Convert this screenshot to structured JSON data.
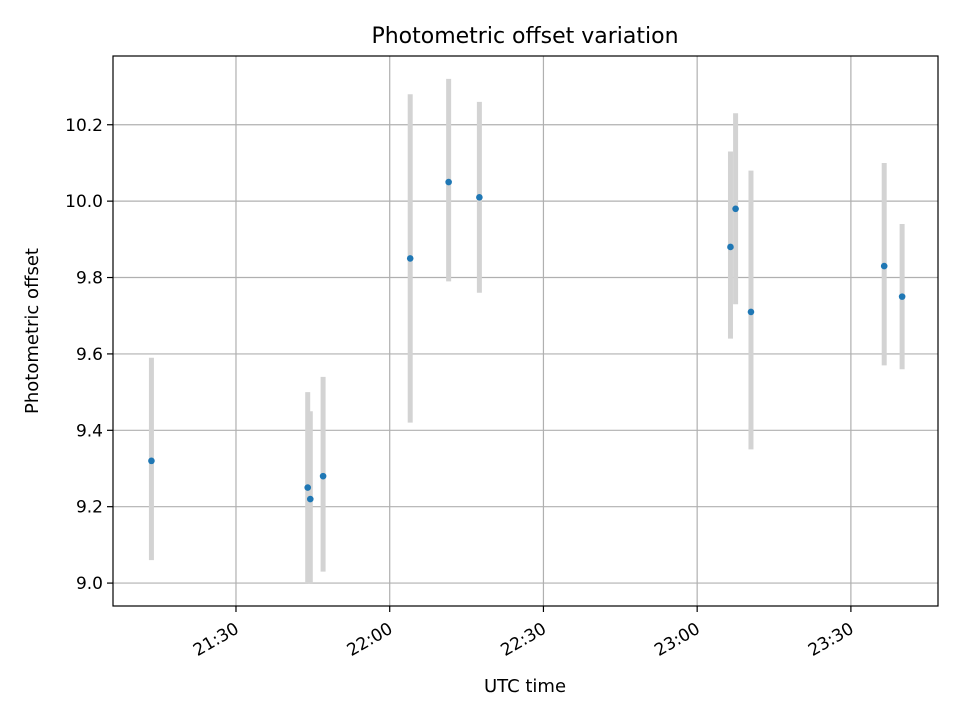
{
  "chart_data": {
    "type": "scatter",
    "title": "Photometric offset variation",
    "xlabel": "UTC time",
    "ylabel": "Photometric offset",
    "x_ticks": [
      "21:30",
      "22:00",
      "22:30",
      "23:00",
      "23:30"
    ],
    "y_ticks": [
      "9.0",
      "9.2",
      "9.4",
      "9.6",
      "9.8",
      "10.0",
      "10.2"
    ],
    "xlim": [
      "21:06",
      "23:47"
    ],
    "ylim": [
      8.94,
      10.38
    ],
    "grid": true,
    "point_color": "#1f77b4",
    "errorbar_color": "#d3d3d3",
    "points": [
      {
        "x": "21:13:30",
        "y": 9.32,
        "err_low": 9.06,
        "err_high": 9.59
      },
      {
        "x": "21:44:00",
        "y": 9.25,
        "err_low": 9.0,
        "err_high": 9.5
      },
      {
        "x": "21:44:30",
        "y": 9.22,
        "err_low": 9.0,
        "err_high": 9.45
      },
      {
        "x": "21:47:00",
        "y": 9.28,
        "err_low": 9.03,
        "err_high": 9.54
      },
      {
        "x": "22:04:00",
        "y": 9.85,
        "err_low": 9.42,
        "err_high": 10.28
      },
      {
        "x": "22:11:30",
        "y": 10.05,
        "err_low": 9.79,
        "err_high": 10.32
      },
      {
        "x": "22:17:30",
        "y": 10.01,
        "err_low": 9.76,
        "err_high": 10.26
      },
      {
        "x": "23:06:30",
        "y": 9.88,
        "err_low": 9.64,
        "err_high": 10.13
      },
      {
        "x": "23:07:30",
        "y": 9.98,
        "err_low": 9.73,
        "err_high": 10.23
      },
      {
        "x": "23:10:30",
        "y": 9.71,
        "err_low": 9.35,
        "err_high": 10.08
      },
      {
        "x": "23:36:30",
        "y": 9.83,
        "err_low": 9.57,
        "err_high": 10.1
      },
      {
        "x": "23:40:00",
        "y": 9.75,
        "err_low": 9.56,
        "err_high": 9.94
      }
    ]
  }
}
